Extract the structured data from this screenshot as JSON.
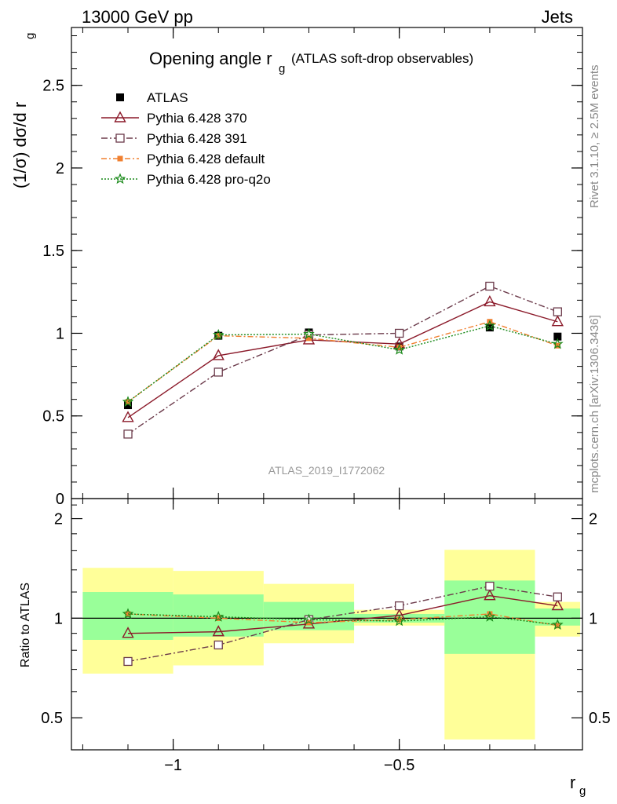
{
  "header": {
    "left": "13000 GeV pp",
    "right": "Jets"
  },
  "side_labels": {
    "rivet": "Rivet 3.1.10, ≥ 2.5M events",
    "mcplots": "mcplots.cern.ch [arXiv:1306.3436]"
  },
  "colors": {
    "atlas": "#000000",
    "p370": "#8b1a2a",
    "p391": "#6b3a4a",
    "pdefault": "#f08030",
    "pq2o": "#1a8a1a",
    "band_green": "#99ff99",
    "band_yellow": "#ffff99",
    "watermark": "#999999"
  },
  "chart_data": [
    {
      "type": "line",
      "title_main": "Opening angle r",
      "title_sub": "g",
      "title_paren": "(ATLAS soft-drop observables)",
      "ylabel": "(1/σ) dσ/d r",
      "ylabel_sub": "g",
      "ylim": [
        0,
        2.85
      ],
      "xlim": [
        -1.225,
        -0.095
      ],
      "yticks": [
        0.5,
        1,
        1.5,
        2,
        2.5
      ],
      "ytick_labels": [
        "0.5",
        "1",
        "1.5",
        "2",
        "2.5"
      ],
      "y_zero_label": "0",
      "watermark": "ATLAS_2019_I1772062",
      "x": [
        -1.1,
        -0.9,
        -0.7,
        -0.5,
        -0.3,
        -0.15
      ],
      "bin_edges": [
        -1.2,
        -1.0,
        -0.8,
        -0.6,
        -0.4,
        -0.2,
        -0.1
      ],
      "series": [
        {
          "name": "ATLAS",
          "key": "atlas",
          "values": [
            0.565,
            0.985,
            1.005,
            0.92,
            1.035,
            0.98
          ]
        },
        {
          "name": "Pythia 6.428 370",
          "key": "p370",
          "values": [
            0.49,
            0.865,
            0.96,
            0.935,
            1.19,
            1.07
          ]
        },
        {
          "name": "Pythia 6.428 391",
          "key": "p391",
          "values": [
            0.39,
            0.765,
            0.99,
            1.0,
            1.285,
            1.13
          ]
        },
        {
          "name": "Pythia 6.428 default",
          "key": "pdefault",
          "values": [
            0.585,
            0.985,
            0.97,
            0.915,
            1.07,
            0.925
          ]
        },
        {
          "name": "Pythia 6.428 pro-q2o",
          "key": "pq2o",
          "values": [
            0.585,
            0.99,
            0.995,
            0.9,
            1.045,
            0.935
          ]
        }
      ]
    },
    {
      "type": "line",
      "ylabel": "Ratio to ATLAS",
      "xlabel": "r",
      "xlabel_sub": "g",
      "ylim": [
        0.4,
        2.3
      ],
      "xlim": [
        -1.225,
        -0.095
      ],
      "yticks": [
        0.5,
        1,
        2
      ],
      "ytick_labels": [
        "0.5",
        "1",
        "2"
      ],
      "xticks": [
        -1,
        -0.5
      ],
      "xtick_labels": [
        "−1",
        "−0.5"
      ],
      "reference_line": 1,
      "bin_edges": [
        -1.2,
        -1.0,
        -0.8,
        -0.6,
        -0.4,
        -0.2,
        -0.1
      ],
      "band_inner": [
        [
          0.86,
          1.2
        ],
        [
          0.88,
          1.18
        ],
        [
          0.92,
          1.12
        ],
        [
          0.97,
          1.03
        ],
        [
          0.78,
          1.3
        ],
        [
          0.95,
          1.07
        ]
      ],
      "band_outer": [
        [
          0.68,
          1.42
        ],
        [
          0.72,
          1.39
        ],
        [
          0.84,
          1.27
        ],
        [
          0.95,
          1.06
        ],
        [
          0.43,
          1.61
        ],
        [
          0.88,
          1.12
        ]
      ],
      "x": [
        -1.1,
        -0.9,
        -0.7,
        -0.5,
        -0.3,
        -0.15
      ],
      "series": [
        {
          "name": "Pythia 6.428 370",
          "key": "p370",
          "values": [
            0.9,
            0.91,
            0.96,
            1.02,
            1.17,
            1.09
          ]
        },
        {
          "name": "Pythia 6.428 391",
          "key": "p391",
          "values": [
            0.74,
            0.83,
            0.99,
            1.09,
            1.25,
            1.16
          ]
        },
        {
          "name": "Pythia 6.428 default",
          "key": "pdefault",
          "values": [
            1.03,
            1.0,
            0.97,
            0.99,
            1.03,
            0.95
          ]
        },
        {
          "name": "Pythia 6.428 pro-q2o",
          "key": "pq2o",
          "values": [
            1.03,
            1.01,
            0.99,
            0.98,
            1.01,
            0.955
          ]
        }
      ]
    }
  ]
}
